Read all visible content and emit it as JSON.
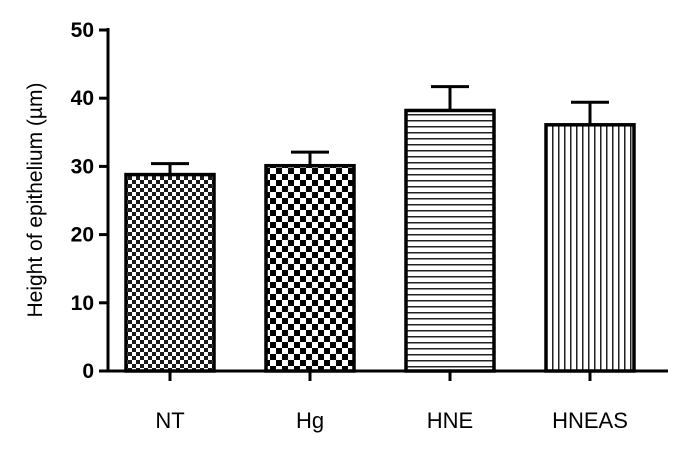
{
  "chart_data": {
    "type": "bar",
    "title": "",
    "xlabel": "",
    "ylabel": "Height of epithelium (µm)",
    "ylim": [
      0,
      50
    ],
    "yticks": [
      0,
      10,
      20,
      30,
      40,
      50
    ],
    "categories": [
      "NT",
      "Hg",
      "HNE",
      "HNEAS"
    ],
    "values": [
      28.8,
      30.1,
      38.2,
      36.1
    ],
    "errors": [
      1.6,
      2.0,
      3.5,
      3.3
    ],
    "patterns": [
      "fine-checker",
      "coarse-checker",
      "horizontal-lines",
      "vertical-lines"
    ],
    "grid": false,
    "legend": "none"
  }
}
